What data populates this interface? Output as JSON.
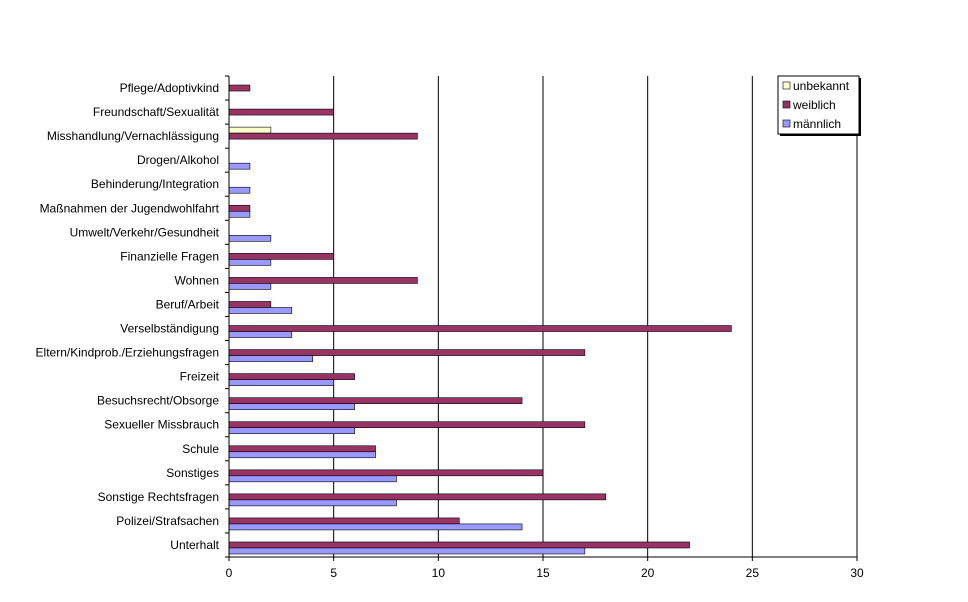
{
  "chart_data": {
    "type": "bar",
    "orientation": "horizontal",
    "categories": [
      "Pflege/Adoptivkind",
      "Freundschaft/Sexualität",
      "Misshandlung/Vernachlässigung",
      "Drogen/Alkohol",
      "Behinderung/Integration",
      "Maßnahmen der Jugendwohlfahrt",
      "Umwelt/Verkehr/Gesundheit",
      "Finanzielle Fragen",
      "Wohnen",
      "Beruf/Arbeit",
      "Verselbständigung",
      "Eltern/Kindprob./Erziehungsfragen",
      "Freizeit",
      "Besuchsrecht/Obsorge",
      "Sexueller Missbrauch",
      "Schule",
      "Sonstiges",
      "Sonstige Rechtsfragen",
      "Polizei/Strafsachen",
      "Unterhalt"
    ],
    "series": [
      {
        "name": "unbekannt",
        "color": "#ffffcc",
        "values": [
          0,
          0,
          2,
          0,
          0,
          0,
          0,
          0,
          0,
          0,
          0,
          0,
          0,
          0,
          0,
          0,
          0,
          0,
          0,
          0
        ]
      },
      {
        "name": "weiblich",
        "color": "#993366",
        "values": [
          1,
          5,
          9,
          0,
          0,
          1,
          0,
          5,
          9,
          2,
          24,
          17,
          6,
          14,
          17,
          7,
          15,
          18,
          11,
          22
        ]
      },
      {
        "name": "männlich",
        "color": "#9999ff",
        "values": [
          0,
          0,
          0,
          1,
          1,
          1,
          2,
          2,
          2,
          3,
          3,
          4,
          5,
          6,
          6,
          7,
          8,
          8,
          14,
          17
        ]
      }
    ],
    "xlim": [
      0,
      30
    ],
    "xticks": [
      0,
      5,
      10,
      15,
      20,
      25,
      30
    ],
    "grid": "vertical",
    "legend": "top-right"
  }
}
